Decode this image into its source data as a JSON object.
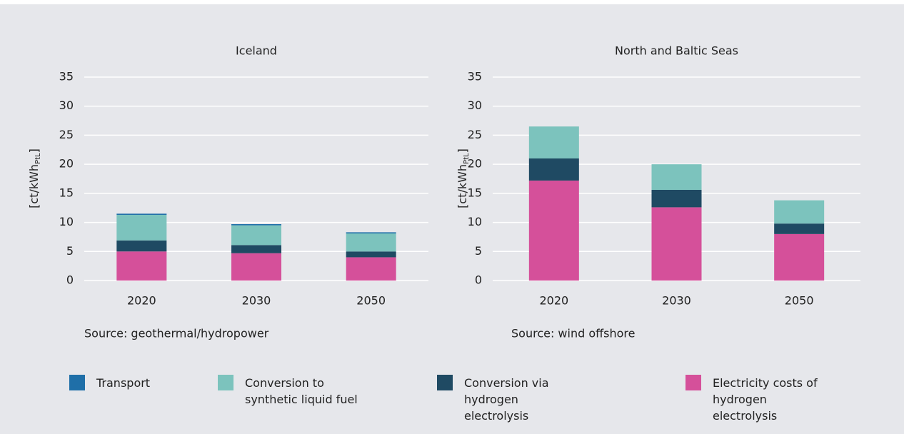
{
  "chart_data": [
    {
      "type": "stacked_bar",
      "title": "Iceland",
      "y_label": {
        "text": "[ct/kWh",
        "sub": "PtL",
        "end": "]"
      },
      "categories": [
        "2020",
        "2030",
        "2050"
      ],
      "series": [
        {
          "name": "Electricity costs of hydrogen electrolysis",
          "color": "#d5509a",
          "values": [
            5.0,
            4.7,
            4.0
          ]
        },
        {
          "name": "Conversion via hydrogen electrolysis",
          "color": "#1f4a63",
          "values": [
            1.9,
            1.4,
            1.0
          ]
        },
        {
          "name": "Conversion to synthetic liquid fuel",
          "color": "#7cc3bd",
          "values": [
            4.4,
            3.4,
            3.1
          ]
        },
        {
          "name": "Transport",
          "color": "#1f6fa8",
          "values": [
            0.2,
            0.2,
            0.2
          ]
        }
      ],
      "ylim": [
        0,
        35
      ],
      "yticks": [
        0,
        5,
        10,
        15,
        20,
        25,
        30,
        35
      ],
      "grid": true,
      "source": "Source: geothermal/hydropower"
    },
    {
      "type": "stacked_bar",
      "title": "North and Baltic Seas",
      "y_label": {
        "text": "[ct/kWh",
        "sub": "PtL",
        "end": "]"
      },
      "categories": [
        "2020",
        "2030",
        "2050"
      ],
      "series": [
        {
          "name": "Electricity costs of hydrogen electrolysis",
          "color": "#d5509a",
          "values": [
            17.2,
            12.6,
            8.0
          ]
        },
        {
          "name": "Conversion via hydrogen electrolysis",
          "color": "#1f4a63",
          "values": [
            3.8,
            3.0,
            1.8
          ]
        },
        {
          "name": "Conversion to synthetic liquid fuel",
          "color": "#7cc3bd",
          "values": [
            5.5,
            4.4,
            4.0
          ]
        },
        {
          "name": "Transport",
          "color": "#1f6fa8",
          "values": [
            0,
            0,
            0
          ]
        }
      ],
      "ylim": [
        0,
        35
      ],
      "yticks": [
        0,
        5,
        10,
        15,
        20,
        25,
        30,
        35
      ],
      "grid": true,
      "source": "Source: wind offshore"
    }
  ]
}
